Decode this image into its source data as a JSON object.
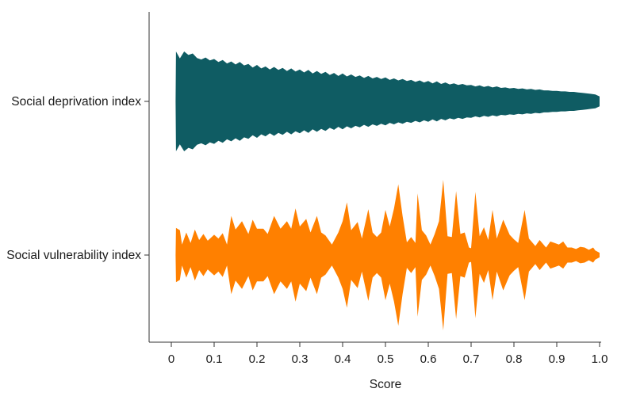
{
  "chart_data": {
    "type": "violin",
    "xlabel": "Score",
    "xlim": [
      0,
      1.0
    ],
    "xticks": [
      {
        "value": 0,
        "label": "0"
      },
      {
        "value": 0.1,
        "label": "0.1"
      },
      {
        "value": 0.2,
        "label": "0.2"
      },
      {
        "value": 0.3,
        "label": "0.3"
      },
      {
        "value": 0.4,
        "label": "0.4"
      },
      {
        "value": 0.5,
        "label": "0.5"
      },
      {
        "value": 0.6,
        "label": "0.6"
      },
      {
        "value": 0.7,
        "label": "0.7"
      },
      {
        "value": 0.8,
        "label": "0.8"
      },
      {
        "value": 0.9,
        "label": "0.9"
      },
      {
        "value": 1.0,
        "label": "1.0"
      }
    ],
    "categories": [
      "Social deprivation index",
      "Social vulnerability index"
    ],
    "series": [
      {
        "category": "Social deprivation index",
        "color": "#0f5c63",
        "density": [
          [
            0.01,
            0.0
          ],
          [
            0.011,
            1.0
          ],
          [
            0.02,
            0.86
          ],
          [
            0.03,
            1.0
          ],
          [
            0.04,
            0.93
          ],
          [
            0.05,
            0.96
          ],
          [
            0.06,
            0.87
          ],
          [
            0.07,
            0.84
          ],
          [
            0.08,
            0.88
          ],
          [
            0.09,
            0.82
          ],
          [
            0.1,
            0.85
          ],
          [
            0.11,
            0.79
          ],
          [
            0.12,
            0.83
          ],
          [
            0.13,
            0.76
          ],
          [
            0.14,
            0.8
          ],
          [
            0.15,
            0.74
          ],
          [
            0.16,
            0.79
          ],
          [
            0.17,
            0.72
          ],
          [
            0.18,
            0.75
          ],
          [
            0.19,
            0.68
          ],
          [
            0.2,
            0.73
          ],
          [
            0.21,
            0.66
          ],
          [
            0.22,
            0.7
          ],
          [
            0.23,
            0.64
          ],
          [
            0.24,
            0.69
          ],
          [
            0.25,
            0.63
          ],
          [
            0.26,
            0.67
          ],
          [
            0.27,
            0.61
          ],
          [
            0.28,
            0.66
          ],
          [
            0.29,
            0.6
          ],
          [
            0.3,
            0.64
          ],
          [
            0.31,
            0.58
          ],
          [
            0.32,
            0.63
          ],
          [
            0.33,
            0.56
          ],
          [
            0.34,
            0.61
          ],
          [
            0.35,
            0.55
          ],
          [
            0.36,
            0.59
          ],
          [
            0.37,
            0.53
          ],
          [
            0.38,
            0.57
          ],
          [
            0.39,
            0.51
          ],
          [
            0.4,
            0.56
          ],
          [
            0.41,
            0.5
          ],
          [
            0.42,
            0.54
          ],
          [
            0.43,
            0.49
          ],
          [
            0.44,
            0.52
          ],
          [
            0.45,
            0.47
          ],
          [
            0.46,
            0.51
          ],
          [
            0.47,
            0.46
          ],
          [
            0.48,
            0.49
          ],
          [
            0.49,
            0.45
          ],
          [
            0.5,
            0.48
          ],
          [
            0.51,
            0.43
          ],
          [
            0.52,
            0.46
          ],
          [
            0.53,
            0.42
          ],
          [
            0.54,
            0.45
          ],
          [
            0.55,
            0.41
          ],
          [
            0.56,
            0.43
          ],
          [
            0.57,
            0.39
          ],
          [
            0.58,
            0.42
          ],
          [
            0.59,
            0.38
          ],
          [
            0.6,
            0.41
          ],
          [
            0.61,
            0.36
          ],
          [
            0.62,
            0.4
          ],
          [
            0.63,
            0.35
          ],
          [
            0.64,
            0.38
          ],
          [
            0.65,
            0.34
          ],
          [
            0.66,
            0.36
          ],
          [
            0.67,
            0.33
          ],
          [
            0.68,
            0.35
          ],
          [
            0.69,
            0.32
          ],
          [
            0.7,
            0.33
          ],
          [
            0.71,
            0.3
          ],
          [
            0.72,
            0.32
          ],
          [
            0.73,
            0.29
          ],
          [
            0.74,
            0.31
          ],
          [
            0.75,
            0.28
          ],
          [
            0.76,
            0.3
          ],
          [
            0.77,
            0.27
          ],
          [
            0.78,
            0.28
          ],
          [
            0.79,
            0.26
          ],
          [
            0.8,
            0.27
          ],
          [
            0.81,
            0.25
          ],
          [
            0.82,
            0.26
          ],
          [
            0.83,
            0.24
          ],
          [
            0.84,
            0.25
          ],
          [
            0.85,
            0.23
          ],
          [
            0.86,
            0.24
          ],
          [
            0.87,
            0.22
          ],
          [
            0.88,
            0.22
          ],
          [
            0.89,
            0.21
          ],
          [
            0.9,
            0.21
          ],
          [
            0.91,
            0.2
          ],
          [
            0.92,
            0.2
          ],
          [
            0.93,
            0.19
          ],
          [
            0.94,
            0.19
          ],
          [
            0.95,
            0.18
          ],
          [
            0.96,
            0.17
          ],
          [
            0.97,
            0.16
          ],
          [
            0.98,
            0.15
          ],
          [
            0.99,
            0.14
          ],
          [
            1.0,
            0.1
          ],
          [
            1.0,
            0.0
          ]
        ]
      },
      {
        "category": "Social vulnerability index",
        "color": "#ff8000",
        "density": [
          [
            0.01,
            0.0
          ],
          [
            0.011,
            0.36
          ],
          [
            0.02,
            0.33
          ],
          [
            0.025,
            0.14
          ],
          [
            0.035,
            0.3
          ],
          [
            0.045,
            0.16
          ],
          [
            0.055,
            0.34
          ],
          [
            0.065,
            0.2
          ],
          [
            0.075,
            0.28
          ],
          [
            0.085,
            0.19
          ],
          [
            0.1,
            0.27
          ],
          [
            0.11,
            0.22
          ],
          [
            0.12,
            0.29
          ],
          [
            0.13,
            0.14
          ],
          [
            0.14,
            0.52
          ],
          [
            0.15,
            0.34
          ],
          [
            0.165,
            0.45
          ],
          [
            0.18,
            0.28
          ],
          [
            0.19,
            0.47
          ],
          [
            0.2,
            0.35
          ],
          [
            0.215,
            0.35
          ],
          [
            0.225,
            0.28
          ],
          [
            0.24,
            0.52
          ],
          [
            0.255,
            0.35
          ],
          [
            0.27,
            0.45
          ],
          [
            0.28,
            0.35
          ],
          [
            0.29,
            0.62
          ],
          [
            0.3,
            0.38
          ],
          [
            0.315,
            0.48
          ],
          [
            0.325,
            0.3
          ],
          [
            0.34,
            0.52
          ],
          [
            0.35,
            0.3
          ],
          [
            0.36,
            0.26
          ],
          [
            0.375,
            0.14
          ],
          [
            0.39,
            0.3
          ],
          [
            0.4,
            0.45
          ],
          [
            0.41,
            0.7
          ],
          [
            0.42,
            0.33
          ],
          [
            0.435,
            0.44
          ],
          [
            0.445,
            0.22
          ],
          [
            0.46,
            0.61
          ],
          [
            0.47,
            0.3
          ],
          [
            0.48,
            0.24
          ],
          [
            0.49,
            0.3
          ],
          [
            0.5,
            0.6
          ],
          [
            0.51,
            0.38
          ],
          [
            0.52,
            0.62
          ],
          [
            0.53,
            0.94
          ],
          [
            0.54,
            0.52
          ],
          [
            0.55,
            0.17
          ],
          [
            0.56,
            0.24
          ],
          [
            0.57,
            0.16
          ],
          [
            0.575,
            0.82
          ],
          [
            0.585,
            0.33
          ],
          [
            0.595,
            0.26
          ],
          [
            0.605,
            0.14
          ],
          [
            0.615,
            0.28
          ],
          [
            0.625,
            0.45
          ],
          [
            0.635,
            1.0
          ],
          [
            0.645,
            0.25
          ],
          [
            0.655,
            0.24
          ],
          [
            0.665,
            0.85
          ],
          [
            0.675,
            0.28
          ],
          [
            0.685,
            0.3
          ],
          [
            0.695,
            0.1
          ],
          [
            0.7,
            0.09
          ],
          [
            0.71,
            0.84
          ],
          [
            0.72,
            0.25
          ],
          [
            0.73,
            0.37
          ],
          [
            0.74,
            0.2
          ],
          [
            0.75,
            0.6
          ],
          [
            0.76,
            0.22
          ],
          [
            0.775,
            0.47
          ],
          [
            0.79,
            0.27
          ],
          [
            0.8,
            0.21
          ],
          [
            0.81,
            0.16
          ],
          [
            0.825,
            0.6
          ],
          [
            0.835,
            0.22
          ],
          [
            0.85,
            0.12
          ],
          [
            0.86,
            0.2
          ],
          [
            0.875,
            0.1
          ],
          [
            0.885,
            0.18
          ],
          [
            0.895,
            0.16
          ],
          [
            0.905,
            0.14
          ],
          [
            0.915,
            0.18
          ],
          [
            0.925,
            0.1
          ],
          [
            0.935,
            0.1
          ],
          [
            0.945,
            0.08
          ],
          [
            0.955,
            0.11
          ],
          [
            0.965,
            0.1
          ],
          [
            0.975,
            0.07
          ],
          [
            0.985,
            0.1
          ],
          [
            0.99,
            0.06
          ],
          [
            1.0,
            0.03
          ],
          [
            1.0,
            0.0
          ]
        ]
      }
    ]
  }
}
